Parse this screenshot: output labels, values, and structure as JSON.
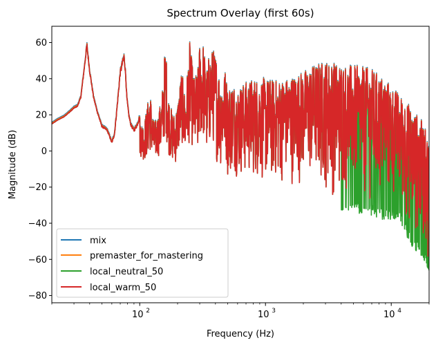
{
  "chart_data": {
    "type": "line",
    "title": "Spectrum Overlay (first 60s)",
    "xlabel": "Frequency (Hz)",
    "ylabel": "Magnitude (dB)",
    "x_scale": "log",
    "xlim": [
      20,
      20000
    ],
    "ylim": [
      -84,
      69
    ],
    "x_ticks": [
      100,
      1000,
      10000
    ],
    "x_tick_labels": [
      "10",
      "10",
      "10"
    ],
    "x_tick_exponents": [
      "2",
      "3",
      "4"
    ],
    "y_ticks": [
      60,
      40,
      20,
      0,
      -20,
      -40,
      -60,
      -80
    ],
    "y_tick_labels": [
      "60",
      "40",
      "20",
      "0",
      "−20",
      "−40",
      "−60",
      "−80"
    ],
    "grid": false,
    "legend_position": "lower-left",
    "series": [
      {
        "name": "mix",
        "color": "#1f77b4",
        "offset": 0.9
      },
      {
        "name": "premaster_for_mastering",
        "color": "#ff7f0e",
        "offset": 0.45
      },
      {
        "name": "local_neutral_50",
        "color": "#2ca02c",
        "offset": 0
      },
      {
        "name": "local_warm_50",
        "color": "#d62728",
        "offset": 0
      }
    ],
    "envelope": {
      "x": [
        20,
        22,
        25,
        28,
        30,
        32,
        34,
        36,
        38,
        40,
        43,
        46,
        50,
        55,
        58,
        60,
        63,
        66,
        70,
        75,
        77,
        79,
        82,
        85,
        90,
        95,
        100,
        105,
        110,
        115,
        120,
        130,
        140,
        150,
        160,
        170,
        180,
        190,
        200,
        215,
        230,
        250,
        270,
        290,
        300,
        310,
        320,
        340,
        360,
        380,
        400,
        440,
        480,
        500,
        550,
        600,
        700,
        800,
        900,
        1000,
        1200,
        1500,
        2000,
        2500,
        3000,
        3500,
        4000,
        5000,
        6000,
        7000,
        8000,
        9000,
        10000,
        11000,
        12000,
        13000,
        14000,
        15000,
        16000,
        17000,
        18000,
        19000,
        20000
      ],
      "y": [
        15,
        17,
        19,
        22,
        24,
        25,
        30,
        45,
        60,
        45,
        30,
        22,
        14,
        12,
        8,
        5,
        10,
        25,
        45,
        54,
        45,
        30,
        20,
        15,
        12,
        15,
        20,
        15,
        18,
        25,
        35,
        15,
        20,
        30,
        60,
        30,
        22,
        20,
        27,
        45,
        30,
        60,
        40,
        45,
        60,
        58,
        60,
        45,
        55,
        56,
        55,
        40,
        45,
        35,
        38,
        35,
        38,
        40,
        40,
        40,
        39,
        40,
        44,
        48,
        50,
        49,
        48,
        47,
        46,
        45,
        42,
        40,
        36,
        33,
        30,
        28,
        25,
        22,
        20,
        18,
        15,
        10,
        5
      ],
      "lower": [
        13,
        15,
        17,
        18,
        19,
        20,
        22,
        25,
        28,
        25,
        18,
        12,
        5,
        2,
        -3,
        -6,
        -5,
        0,
        10,
        18,
        20,
        14,
        8,
        2,
        -3,
        -5,
        -2,
        -5,
        -5,
        -3,
        0,
        -5,
        -3,
        -2,
        10,
        -2,
        -6,
        -8,
        -5,
        5,
        -5,
        5,
        0,
        -8,
        5,
        5,
        5,
        -5,
        0,
        5,
        -5,
        -10,
        -5,
        -15,
        -12,
        -15,
        -16,
        -16,
        -18,
        -20,
        -20,
        -20,
        -20,
        -22,
        -25,
        -28,
        -28,
        -28,
        -30,
        -30,
        -32,
        -32,
        -32,
        -32,
        -35,
        -40,
        -45,
        -50,
        -50,
        -52,
        -55,
        -58,
        -62
      ]
    }
  }
}
